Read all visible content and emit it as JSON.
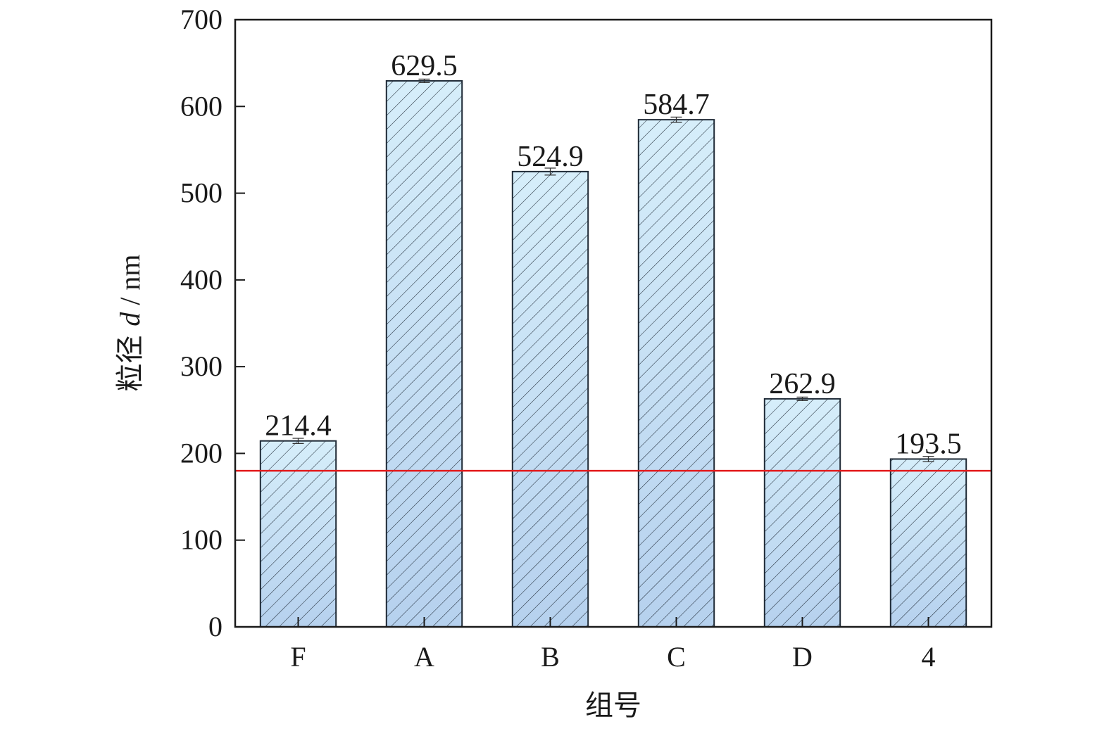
{
  "chart_data": {
    "type": "bar",
    "title": "",
    "xlabel": "组号",
    "ylabel": {
      "prefix": "粒径 ",
      "symbol": "d",
      "suffix": " / nm"
    },
    "categories": [
      "F",
      "A",
      "B",
      "C",
      "D",
      "4"
    ],
    "values": [
      214.4,
      629.5,
      524.9,
      584.7,
      262.9,
      193.5
    ],
    "value_labels": [
      "214.4",
      "629.5",
      "524.9",
      "584.7",
      "262.9",
      "193.5"
    ],
    "error": [
      3,
      2,
      4,
      3,
      2,
      3
    ],
    "ylim": [
      0,
      700
    ],
    "yticks": [
      0,
      100,
      200,
      300,
      400,
      500,
      600,
      700
    ],
    "reference_line": {
      "y": 180,
      "color": "#e31a1c"
    },
    "grid": false,
    "legend": "none",
    "colors": {
      "bar_fill_top": "#d6eefa",
      "bar_fill_bottom": "#b6d1ee",
      "bar_hatch": "#1f2a36",
      "bar_edge": "#1f2a36",
      "axis": "#1a1a1a"
    }
  }
}
